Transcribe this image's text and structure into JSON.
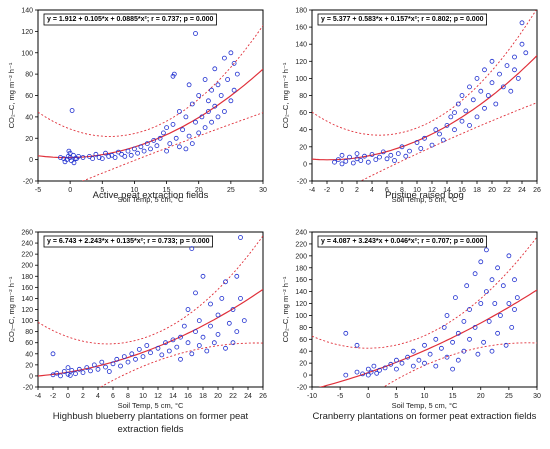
{
  "chart_data": [
    {
      "type": "scatter",
      "equation": "y = 1.912 + 0.105*x + 0.0885*x²; r = 0.737; p = 0.000",
      "caption": "Active peat extraction fields",
      "xlabel": "Soil Temp, 5 cm, °C",
      "ylabel": "CO₂–C, mg m⁻² h⁻¹",
      "xlim": [
        -5,
        30
      ],
      "ylim": [
        -20,
        140
      ],
      "xticks": [
        -5,
        0,
        5,
        10,
        15,
        20,
        25,
        30
      ],
      "yticks": [
        -20,
        0,
        20,
        40,
        60,
        80,
        100,
        120,
        140
      ],
      "fit": [
        1.912,
        0.105,
        0.0885
      ],
      "band": [
        30,
        12
      ],
      "points": [
        [
          -1.5,
          2
        ],
        [
          -1,
          1
        ],
        [
          -0.5,
          0
        ],
        [
          -0.3,
          3
        ],
        [
          0,
          2
        ],
        [
          0.2,
          -1
        ],
        [
          0.5,
          4
        ],
        [
          0.8,
          1
        ],
        [
          0,
          6
        ],
        [
          -0.8,
          -2
        ],
        [
          0.3,
          46
        ],
        [
          1,
          1
        ],
        [
          1.3,
          3
        ],
        [
          -0.2,
          8
        ],
        [
          0.6,
          -3
        ],
        [
          2,
          2
        ],
        [
          3,
          3
        ],
        [
          3.5,
          1
        ],
        [
          4,
          5
        ],
        [
          4.5,
          2
        ],
        [
          5,
          1
        ],
        [
          5.5,
          6
        ],
        [
          6,
          3
        ],
        [
          6.5,
          4
        ],
        [
          7,
          2
        ],
        [
          7.5,
          7
        ],
        [
          8,
          5
        ],
        [
          8.5,
          3
        ],
        [
          9,
          8
        ],
        [
          9.5,
          4
        ],
        [
          10,
          10
        ],
        [
          10.5,
          6
        ],
        [
          11,
          12
        ],
        [
          11.5,
          8
        ],
        [
          12,
          15
        ],
        [
          12.5,
          10
        ],
        [
          13,
          18
        ],
        [
          13.5,
          13
        ],
        [
          14,
          20
        ],
        [
          14.5,
          25
        ],
        [
          15,
          8
        ],
        [
          15,
          30
        ],
        [
          15.5,
          15
        ],
        [
          16,
          33
        ],
        [
          16,
          78
        ],
        [
          16.2,
          80
        ],
        [
          16.5,
          20
        ],
        [
          17,
          45
        ],
        [
          17,
          12
        ],
        [
          17.5,
          28
        ],
        [
          18,
          10
        ],
        [
          18,
          40
        ],
        [
          18.5,
          22
        ],
        [
          18.5,
          70
        ],
        [
          19,
          15
        ],
        [
          19,
          52
        ],
        [
          19.5,
          35
        ],
        [
          19.5,
          118
        ],
        [
          20,
          25
        ],
        [
          20,
          60
        ],
        [
          20.5,
          40
        ],
        [
          21,
          30
        ],
        [
          21,
          75
        ],
        [
          21.5,
          45
        ],
        [
          21.5,
          55
        ],
        [
          22,
          35
        ],
        [
          22,
          65
        ],
        [
          22.5,
          50
        ],
        [
          22.5,
          85
        ],
        [
          23,
          40
        ],
        [
          23,
          70
        ],
        [
          23.5,
          60
        ],
        [
          24,
          45
        ],
        [
          24,
          95
        ],
        [
          24.5,
          75
        ],
        [
          25,
          55
        ],
        [
          25,
          100
        ],
        [
          25.5,
          65
        ],
        [
          25.5,
          90
        ],
        [
          26,
          80
        ]
      ]
    },
    {
      "type": "scatter",
      "equation": "y = 5.377 + 0.583*x + 0.157*x²; r = 0.802; p = 0.000",
      "caption": "Pristine raised bog",
      "xlabel": "Soil Temp, 5 cm, °C",
      "ylabel": "CO₂–C, mg m⁻² h⁻¹",
      "xlim": [
        -4,
        26
      ],
      "ylim": [
        -20,
        180
      ],
      "xticks": [
        -4,
        -2,
        0,
        2,
        4,
        6,
        8,
        10,
        12,
        14,
        16,
        18,
        20,
        22,
        24,
        26
      ],
      "yticks": [
        -20,
        0,
        20,
        40,
        60,
        80,
        100,
        120,
        140,
        160,
        180
      ],
      "fit": [
        5.377,
        0.583,
        0.157
      ],
      "band": [
        40,
        15
      ],
      "points": [
        [
          -1,
          2
        ],
        [
          -0.5,
          5
        ],
        [
          0,
          0
        ],
        [
          0,
          10
        ],
        [
          0.5,
          3
        ],
        [
          1,
          8
        ],
        [
          1.5,
          1
        ],
        [
          2,
          6
        ],
        [
          2,
          12
        ],
        [
          2.5,
          4
        ],
        [
          3,
          9
        ],
        [
          3.5,
          2
        ],
        [
          4,
          11
        ],
        [
          4.5,
          5
        ],
        [
          5,
          8
        ],
        [
          5.5,
          14
        ],
        [
          6,
          6
        ],
        [
          6.5,
          10
        ],
        [
          7,
          4
        ],
        [
          7.5,
          12
        ],
        [
          8,
          20
        ],
        [
          8.5,
          9
        ],
        [
          9,
          15
        ],
        [
          10,
          25
        ],
        [
          10.5,
          18
        ],
        [
          11,
          30
        ],
        [
          12,
          22
        ],
        [
          12.5,
          40
        ],
        [
          13,
          35
        ],
        [
          13.5,
          28
        ],
        [
          14,
          45
        ],
        [
          14.5,
          55
        ],
        [
          15,
          40
        ],
        [
          15,
          60
        ],
        [
          15.5,
          70
        ],
        [
          16,
          50
        ],
        [
          16,
          80
        ],
        [
          16.5,
          62
        ],
        [
          17,
          45
        ],
        [
          17,
          90
        ],
        [
          17.5,
          75
        ],
        [
          18,
          55
        ],
        [
          18,
          100
        ],
        [
          18.5,
          85
        ],
        [
          19,
          65
        ],
        [
          19,
          110
        ],
        [
          19.5,
          80
        ],
        [
          20,
          95
        ],
        [
          20,
          120
        ],
        [
          20.5,
          70
        ],
        [
          21,
          105
        ],
        [
          21.5,
          90
        ],
        [
          22,
          115
        ],
        [
          22.5,
          85
        ],
        [
          23,
          125
        ],
        [
          23.5,
          100
        ],
        [
          24,
          140
        ],
        [
          24,
          165
        ],
        [
          24.5,
          130
        ],
        [
          23,
          110
        ]
      ]
    },
    {
      "type": "scatter",
      "equation": "y = 6.743 + 2.243*x + 0.135*x²; r = 0.733; p = 0.000",
      "caption": "Highbush blueberry plantations on former peat extraction fields",
      "xlabel": "Soil Temp, 5 cm, °C",
      "ylabel": "CO₂–C, mg m⁻² h⁻¹",
      "xlim": [
        -4,
        26
      ],
      "ylim": [
        -20,
        260
      ],
      "xticks": [
        -4,
        -2,
        0,
        2,
        4,
        6,
        8,
        10,
        12,
        14,
        16,
        18,
        20,
        22,
        24,
        26
      ],
      "yticks": [
        -20,
        0,
        20,
        40,
        60,
        80,
        100,
        120,
        140,
        160,
        180,
        200,
        220,
        240,
        260
      ],
      "fit": [
        6.743,
        2.243,
        0.135
      ],
      "band": [
        70,
        25
      ],
      "points": [
        [
          -2,
          2
        ],
        [
          -2,
          40
        ],
        [
          -1.5,
          5
        ],
        [
          -1,
          0
        ],
        [
          -0.5,
          8
        ],
        [
          0,
          3
        ],
        [
          0,
          15
        ],
        [
          0.3,
          1
        ],
        [
          0.5,
          10
        ],
        [
          1,
          4
        ],
        [
          1.5,
          12
        ],
        [
          2,
          6
        ],
        [
          2.5,
          15
        ],
        [
          3,
          9
        ],
        [
          3.5,
          20
        ],
        [
          4,
          12
        ],
        [
          4.5,
          25
        ],
        [
          5,
          16
        ],
        [
          5.5,
          8
        ],
        [
          6,
          22
        ],
        [
          6.5,
          30
        ],
        [
          7,
          18
        ],
        [
          7.5,
          35
        ],
        [
          8,
          25
        ],
        [
          8.5,
          40
        ],
        [
          9,
          30
        ],
        [
          9.5,
          48
        ],
        [
          10,
          35
        ],
        [
          10.5,
          55
        ],
        [
          11,
          42
        ],
        [
          12,
          50
        ],
        [
          12.5,
          38
        ],
        [
          13,
          60
        ],
        [
          13.5,
          45
        ],
        [
          14,
          65
        ],
        [
          14.5,
          52
        ],
        [
          15,
          70
        ],
        [
          15,
          30
        ],
        [
          15.5,
          90
        ],
        [
          16,
          60
        ],
        [
          16,
          120
        ],
        [
          16.5,
          40
        ],
        [
          16.5,
          230
        ],
        [
          17,
          80
        ],
        [
          17,
          150
        ],
        [
          17.5,
          55
        ],
        [
          17.5,
          100
        ],
        [
          18,
          70
        ],
        [
          18,
          180
        ],
        [
          18.5,
          45
        ],
        [
          19,
          90
        ],
        [
          19,
          130
        ],
        [
          19.5,
          60
        ],
        [
          20,
          110
        ],
        [
          20,
          75
        ],
        [
          20.5,
          140
        ],
        [
          21,
          50
        ],
        [
          21,
          170
        ],
        [
          21.5,
          95
        ],
        [
          22,
          120
        ],
        [
          22,
          60
        ],
        [
          22.5,
          180
        ],
        [
          22.5,
          80
        ],
        [
          23,
          140
        ],
        [
          23,
          250
        ],
        [
          23.5,
          100
        ]
      ]
    },
    {
      "type": "scatter",
      "equation": "y = 4.087 + 3.243*x + 0.046*x²; r = 0.707; p = 0.000",
      "caption": "Cranberry plantations on former peat extraction fields",
      "xlabel": "Soil Temp, 5 cm, °C",
      "ylabel": "CO₂–C, mg m⁻² h⁻¹",
      "xlim": [
        -10,
        30
      ],
      "ylim": [
        -20,
        240
      ],
      "xticks": [
        -10,
        -5,
        0,
        5,
        10,
        15,
        20,
        25,
        30
      ],
      "yticks": [
        -20,
        0,
        20,
        40,
        60,
        80,
        100,
        120,
        140,
        160,
        180,
        200,
        220,
        240
      ],
      "fit": [
        4.087,
        3.243,
        0.046
      ],
      "band": [
        65,
        25
      ],
      "points": [
        [
          -4,
          0
        ],
        [
          -4,
          70
        ],
        [
          -2,
          5
        ],
        [
          -2,
          50
        ],
        [
          -1,
          2
        ],
        [
          0,
          0
        ],
        [
          0,
          10
        ],
        [
          0.5,
          5
        ],
        [
          1,
          15
        ],
        [
          1.5,
          3
        ],
        [
          2,
          8
        ],
        [
          3,
          12
        ],
        [
          4,
          18
        ],
        [
          5,
          10
        ],
        [
          5,
          25
        ],
        [
          6,
          20
        ],
        [
          7,
          30
        ],
        [
          8,
          15
        ],
        [
          8,
          40
        ],
        [
          9,
          25
        ],
        [
          10,
          50
        ],
        [
          10,
          20
        ],
        [
          11,
          35
        ],
        [
          12,
          60
        ],
        [
          12,
          15
        ],
        [
          13,
          45
        ],
        [
          13.5,
          80
        ],
        [
          14,
          30
        ],
        [
          14,
          100
        ],
        [
          15,
          55
        ],
        [
          15,
          10
        ],
        [
          15.5,
          130
        ],
        [
          16,
          70
        ],
        [
          16,
          25
        ],
        [
          17,
          90
        ],
        [
          17,
          40
        ],
        [
          17.5,
          150
        ],
        [
          18,
          60
        ],
        [
          18,
          110
        ],
        [
          19,
          80
        ],
        [
          19,
          170
        ],
        [
          19.5,
          35
        ],
        [
          20,
          120
        ],
        [
          20,
          190
        ],
        [
          20.5,
          55
        ],
        [
          21,
          140
        ],
        [
          21,
          210
        ],
        [
          21.5,
          90
        ],
        [
          22,
          160
        ],
        [
          22,
          40
        ],
        [
          22.5,
          120
        ],
        [
          23,
          180
        ],
        [
          23,
          70
        ],
        [
          23.5,
          100
        ],
        [
          24,
          150
        ],
        [
          24.5,
          50
        ],
        [
          25,
          120
        ],
        [
          25,
          200
        ],
        [
          25.5,
          80
        ],
        [
          26,
          160
        ],
        [
          26,
          110
        ],
        [
          26.5,
          130
        ]
      ]
    }
  ]
}
